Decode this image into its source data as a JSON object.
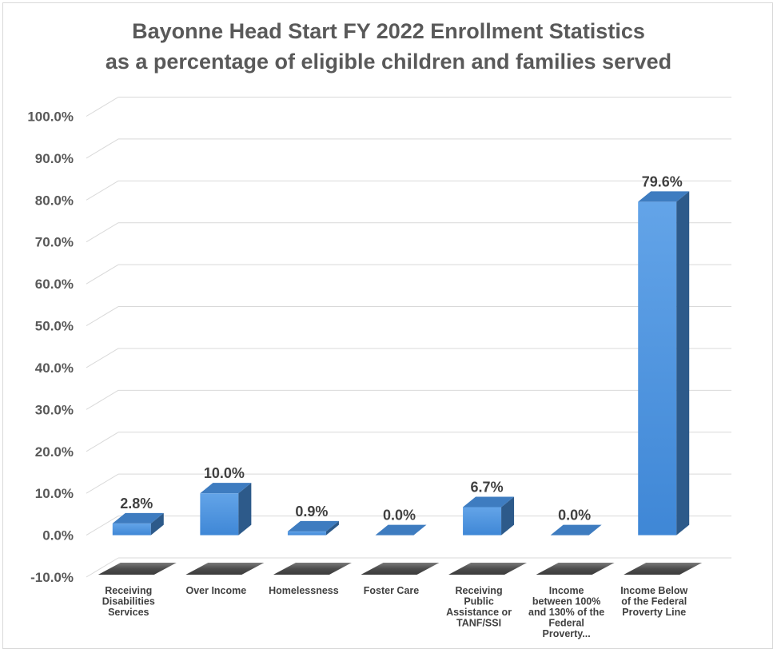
{
  "chart_data": {
    "type": "bar",
    "title_lines": [
      "Bayonne Head Start FY 2022 Enrollment Statistics",
      "as a percentage of eligible children and families served"
    ],
    "categories": [
      [
        "Receiving",
        "Disabilities",
        "Services"
      ],
      [
        "Over Income"
      ],
      [
        "Homelessness"
      ],
      [
        "Foster Care"
      ],
      [
        "Receiving",
        "Public",
        "Assistance or",
        "TANF/SSI"
      ],
      [
        "Income",
        "between 100%",
        "and 130% of the",
        "Federal",
        "Proverty..."
      ],
      [
        "Income Below",
        "of the Federal",
        "Proverty Line"
      ]
    ],
    "values": [
      2.8,
      10.0,
      0.9,
      0.0,
      6.7,
      0.0,
      79.6
    ],
    "data_labels": [
      "2.8%",
      "10.0%",
      "0.9%",
      "0.0%",
      "6.7%",
      "0.0%",
      "79.6%"
    ],
    "ylim": [
      -10,
      100
    ],
    "y_ticks": [
      -10,
      0,
      10,
      20,
      30,
      40,
      50,
      60,
      70,
      80,
      90,
      100
    ],
    "y_tick_labels": [
      "-10.0%",
      "0.0%",
      "10.0%",
      "20.0%",
      "30.0%",
      "40.0%",
      "50.0%",
      "60.0%",
      "70.0%",
      "80.0%",
      "90.0%",
      "100.0%"
    ],
    "grid": true,
    "legend": "none",
    "colors": {
      "bar_front": "#4a8fd9",
      "bar_side": "#2d5a8a",
      "bar_top": "#3e7cc0",
      "floor": "#595959",
      "grid": "#d9d9d9"
    }
  }
}
